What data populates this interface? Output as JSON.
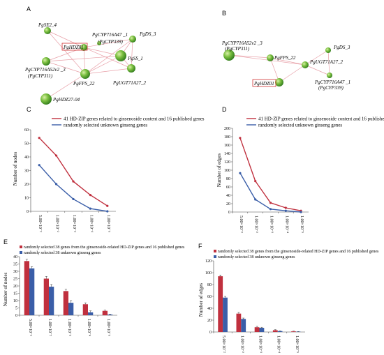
{
  "panels": {
    "A": "A",
    "B": "B",
    "C": "C",
    "D": "D",
    "E": "E",
    "F": "F"
  },
  "network_A": {
    "nodes": [
      {
        "id": "se2",
        "label": "PgSE2_4",
        "highlight": false
      },
      {
        "id": "hdz01",
        "label": "PgHDZ01",
        "highlight": true
      },
      {
        "id": "cyp339",
        "label": "PgCYP716A47 _1",
        "label2": "(PgCYP339)",
        "highlight": false
      },
      {
        "id": "ds3",
        "label": "PgDS_3",
        "highlight": false
      },
      {
        "id": "ss1",
        "label": "PgSS_1",
        "highlight": false
      },
      {
        "id": "cyp311",
        "label": "PgCYP716A52v2 _3",
        "label2": "(PgCYP311)",
        "highlight": false
      },
      {
        "id": "fps22",
        "label": "PgFPS_22",
        "highlight": false
      },
      {
        "id": "ugt",
        "label": "PgUGT71A27_2",
        "highlight": false
      },
      {
        "id": "hdz27",
        "label": "PgHDZ27-04",
        "highlight": false
      }
    ]
  },
  "network_B": {
    "nodes": [
      {
        "id": "cyp311",
        "label": "PgCYP716A52v2 _3",
        "label2": "(PgCYP311)",
        "highlight": false
      },
      {
        "id": "fps22",
        "label": "PgFPS_22",
        "highlight": false
      },
      {
        "id": "ds3",
        "label": "PgDS_3",
        "highlight": false
      },
      {
        "id": "ugt",
        "label": "PgUGT71A27_2",
        "highlight": false
      },
      {
        "id": "hdz01",
        "label": "PgHDZ01",
        "highlight": true
      },
      {
        "id": "cyp339",
        "label": "PgCYP716A47 _1",
        "label2": "(PgCYP339)",
        "highlight": false
      }
    ]
  },
  "chart_data": [
    {
      "panel": "C",
      "type": "line",
      "categories": [
        "5.00×10⁻²",
        "1.00×10⁻²",
        "1.00×10⁻³",
        "1.00×10⁻⁴",
        "1.00×10⁻⁵"
      ],
      "series": [
        {
          "name": "41 HD-ZIP genes related to ginsenoside content and 16 published genes",
          "values": [
            54,
            41,
            22,
            12,
            4
          ],
          "color": "#c0303e"
        },
        {
          "name": "randomly selected unknown ginseng genes",
          "values": [
            34,
            20,
            9,
            2,
            0
          ],
          "color": "#3a5ea8"
        }
      ],
      "ylabel": "Number of nodes",
      "ylim": [
        0,
        60
      ],
      "yticks": [
        0,
        10,
        20,
        30,
        40,
        50,
        60
      ]
    },
    {
      "panel": "D",
      "type": "line",
      "categories": [
        "5.00×10⁻²",
        "1.00×10⁻²",
        "1.00×10⁻³",
        "1.00×10⁻⁴",
        "1.00×10⁻⁵"
      ],
      "series": [
        {
          "name": "41 HD-ZIP genes related to ginsenoside content and 16 published genes",
          "values": [
            177,
            74,
            22,
            10,
            3
          ],
          "color": "#c0303e"
        },
        {
          "name": "randomly selected unknown ginseng genes",
          "values": [
            93,
            30,
            7,
            3,
            0
          ],
          "color": "#3a5ea8"
        }
      ],
      "ylabel": "Number of edges",
      "ylim": [
        0,
        200
      ],
      "yticks": [
        0,
        20,
        40,
        60,
        80,
        100,
        120,
        140,
        160,
        180,
        200
      ]
    },
    {
      "panel": "E",
      "type": "bar",
      "categories": [
        "5.00×10⁻²",
        "1.00×10⁻²",
        "1.00×10⁻³",
        "1.00×10⁻⁴",
        "1.00×10⁻⁵"
      ],
      "series": [
        {
          "name": "randomly selected 38 genes from the ginsenoside-related HD-ZIP genes and 16 published genes",
          "values": [
            37,
            25,
            16.5,
            7.5,
            3
          ],
          "errors": [
            1.2,
            1.5,
            1.2,
            1,
            0.5
          ],
          "color": "#c0303e"
        },
        {
          "name": "randomly selected 38 unknown ginseng genes",
          "values": [
            32,
            19.5,
            8.5,
            2,
            0.5
          ],
          "errors": [
            1.2,
            1.5,
            1.5,
            1,
            0.3
          ],
          "color": "#3a5ea8"
        }
      ],
      "ylabel": "Number of nodes",
      "ylim": [
        0,
        40
      ],
      "yticks": [
        0,
        5,
        10,
        15,
        20,
        25,
        30,
        35,
        40
      ]
    },
    {
      "panel": "F",
      "type": "bar",
      "categories": [
        "5.00×10⁻²",
        "1.00×10⁻²",
        "1.00×10⁻³",
        "1.00×10⁻⁴",
        "1.00×10⁻⁵"
      ],
      "series": [
        {
          "name": "randomly selected 38 genes from the ginsenoside-related HD-ZIP genes and 16 published genes",
          "values": [
            94,
            31,
            8,
            3,
            1
          ],
          "errors": [
            2,
            2,
            1.5,
            1,
            0.5
          ],
          "color": "#c0303e"
        },
        {
          "name": "randomly selected 38 unknown ginseng genes",
          "values": [
            58,
            22,
            7,
            1.5,
            0.5
          ],
          "errors": [
            2,
            1.5,
            1,
            0.5,
            0.3
          ],
          "color": "#3a5ea8"
        }
      ],
      "ylabel": "Number of edges",
      "ylim": [
        0,
        120
      ],
      "yticks": [
        0,
        20,
        40,
        60,
        80,
        100,
        120
      ]
    }
  ]
}
